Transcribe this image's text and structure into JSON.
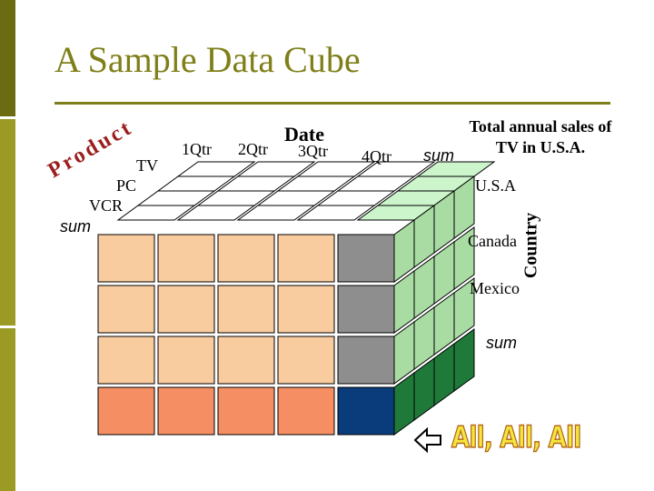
{
  "slide": {
    "title": "A Sample Data Cube"
  },
  "axes": {
    "date": "Date",
    "product": "Product",
    "country": "Country"
  },
  "date_labels": [
    "1Qtr",
    "2Qtr",
    "3Qtr",
    "4Qtr",
    "sum"
  ],
  "product_labels": [
    "TV",
    "PC",
    "VCR",
    "sum"
  ],
  "country_labels": [
    "U.S.A",
    "Canada",
    "Mexico",
    "sum"
  ],
  "annotation": {
    "total_note": "Total annual sales of TV in U.S.A.",
    "all_label": "All, All, All",
    "arrow_icon": "left-arrow-icon"
  },
  "colors": {
    "title": "#7f7f1a",
    "front_cells": "#f9cc9f",
    "front_sum_row": "#f58f63",
    "sum_column": "#8e8e8e",
    "all_cell": "#0a3b7a",
    "side_light": "#a9dca3",
    "side_sum": "#1f7a3a",
    "top_cells": "#ffffff",
    "top_sum": "#ccf5cc",
    "product_axis": "#9b1e1e",
    "all_label_fill": "#f3e63d"
  }
}
